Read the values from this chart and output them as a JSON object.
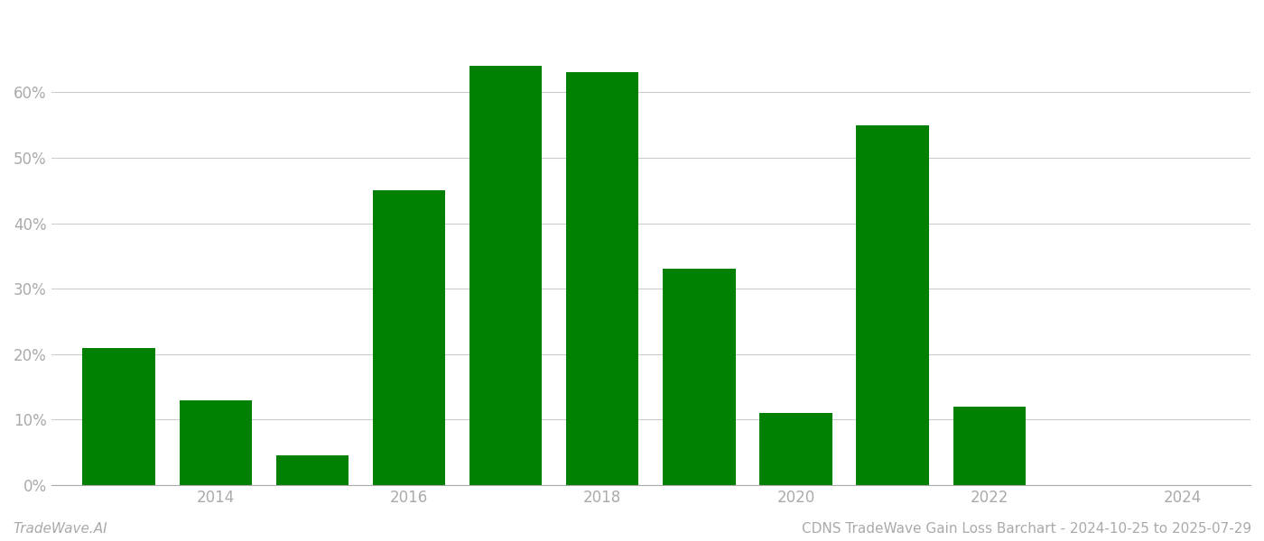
{
  "years": [
    2013,
    2014,
    2015,
    2016,
    2017,
    2018,
    2019,
    2020,
    2021,
    2022,
    2023
  ],
  "values": [
    0.21,
    0.13,
    0.045,
    0.45,
    0.64,
    0.63,
    0.33,
    0.11,
    0.55,
    0.12,
    0.0
  ],
  "bar_color": "#008000",
  "background_color": "#ffffff",
  "grid_color": "#cccccc",
  "axis_color": "#aaaaaa",
  "tick_label_color": "#aaaaaa",
  "ylim": [
    0,
    0.72
  ],
  "yticks": [
    0.0,
    0.1,
    0.2,
    0.3,
    0.4,
    0.5,
    0.6
  ],
  "xlim": [
    2012.3,
    2024.7
  ],
  "xtick_positions": [
    2014,
    2016,
    2018,
    2020,
    2022,
    2024
  ],
  "footer_left": "TradeWave.AI",
  "footer_right": "CDNS TradeWave Gain Loss Barchart - 2024-10-25 to 2025-07-29",
  "footer_color": "#aaaaaa",
  "footer_fontsize": 11,
  "bar_width": 0.75
}
